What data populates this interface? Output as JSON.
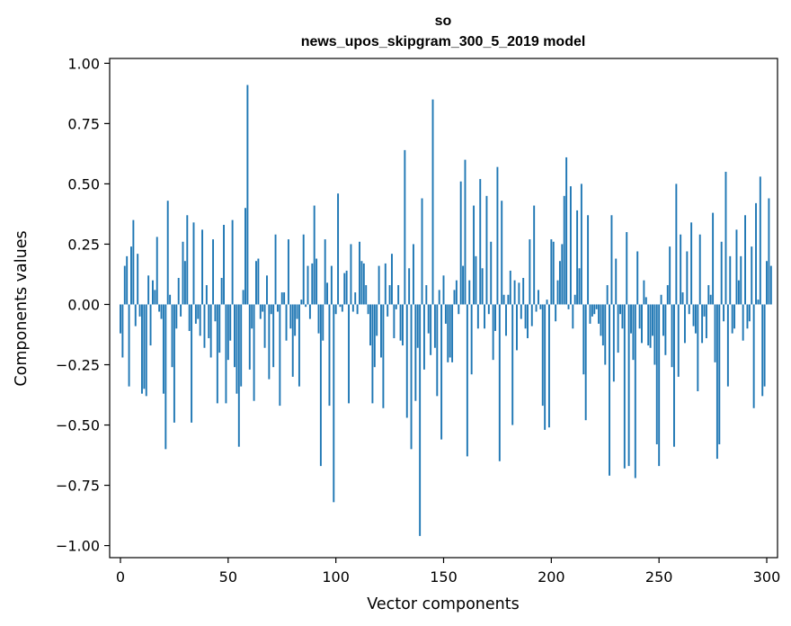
{
  "chart_data": {
    "type": "bar",
    "title": "so",
    "subtitle": "news_upos_skipgram_300_5_2019 model",
    "xlabel": "Vector components",
    "ylabel": "Components values",
    "xlim": [
      -5,
      305
    ],
    "ylim": [
      -1.05,
      1.02
    ],
    "xticks": [
      0,
      50,
      100,
      150,
      200,
      250,
      300
    ],
    "xtick_labels": [
      "0",
      "50",
      "100",
      "150",
      "200",
      "250",
      "300"
    ],
    "yticks": [
      1.0,
      0.75,
      0.5,
      0.25,
      0.0,
      -0.25,
      -0.5,
      -0.75,
      -1.0
    ],
    "ytick_labels": [
      "1.00",
      "0.75",
      "0.50",
      "0.25",
      "0.00",
      "−0.25",
      "−0.50",
      "−0.75",
      "−1.00"
    ],
    "colors": {
      "bar": "#1f77b4",
      "axis": "#000000",
      "background": "#ffffff"
    },
    "values": [
      -0.12,
      -0.22,
      0.16,
      0.2,
      -0.34,
      0.24,
      0.35,
      -0.09,
      0.21,
      -0.05,
      -0.37,
      -0.35,
      -0.38,
      0.12,
      -0.17,
      0.1,
      0.06,
      0.28,
      -0.03,
      -0.06,
      -0.37,
      -0.6,
      0.43,
      0.04,
      -0.26,
      -0.49,
      -0.1,
      0.11,
      -0.05,
      0.26,
      0.18,
      0.37,
      -0.11,
      -0.49,
      0.34,
      -0.08,
      -0.06,
      -0.13,
      0.31,
      -0.18,
      0.08,
      -0.14,
      -0.22,
      0.27,
      -0.07,
      -0.41,
      -0.2,
      0.11,
      0.33,
      -0.41,
      -0.23,
      -0.15,
      0.35,
      -0.26,
      -0.37,
      -0.59,
      -0.34,
      0.06,
      0.4,
      0.91,
      -0.27,
      -0.1,
      -0.4,
      0.18,
      0.19,
      -0.06,
      -0.03,
      -0.18,
      0.12,
      -0.31,
      -0.04,
      -0.26,
      0.29,
      -0.03,
      -0.42,
      0.05,
      0.05,
      -0.15,
      0.27,
      -0.1,
      -0.3,
      -0.13,
      -0.06,
      -0.34,
      0.02,
      0.29,
      -0.01,
      0.16,
      -0.06,
      0.17,
      0.41,
      0.19,
      -0.12,
      -0.67,
      -0.15,
      0.27,
      0.09,
      -0.42,
      0.16,
      -0.82,
      -0.04,
      0.46,
      -0.01,
      -0.03,
      0.13,
      0.14,
      -0.41,
      0.25,
      -0.03,
      0.05,
      -0.04,
      0.26,
      0.18,
      0.17,
      0.08,
      -0.04,
      -0.17,
      -0.41,
      -0.26,
      -0.13,
      0.16,
      -0.22,
      -0.43,
      0.17,
      -0.05,
      0.08,
      0.21,
      -0.14,
      -0.02,
      0.08,
      -0.15,
      -0.17,
      0.64,
      -0.47,
      0.15,
      -0.6,
      0.25,
      -0.4,
      -0.18,
      -0.96,
      0.44,
      -0.27,
      0.08,
      -0.12,
      -0.21,
      0.85,
      -0.18,
      -0.38,
      0.06,
      -0.56,
      0.12,
      -0.08,
      -0.24,
      -0.22,
      -0.24,
      0.06,
      0.1,
      -0.04,
      0.51,
      0.16,
      0.6,
      -0.63,
      0.1,
      -0.29,
      0.41,
      0.2,
      -0.1,
      0.52,
      0.15,
      -0.1,
      0.45,
      -0.04,
      0.26,
      -0.23,
      -0.11,
      0.57,
      -0.65,
      0.43,
      0.04,
      -0.13,
      0.04,
      0.14,
      -0.5,
      0.1,
      -0.19,
      0.09,
      -0.06,
      0.11,
      -0.1,
      -0.14,
      0.27,
      -0.09,
      0.41,
      -0.03,
      0.06,
      -0.02,
      -0.42,
      -0.52,
      0.02,
      -0.51,
      0.27,
      0.26,
      -0.07,
      0.1,
      0.18,
      0.25,
      0.45,
      0.61,
      -0.02,
      0.49,
      -0.1,
      0.04,
      0.39,
      0.15,
      0.5,
      -0.29,
      -0.48,
      0.37,
      -0.08,
      -0.05,
      -0.04,
      -0.02,
      -0.08,
      -0.13,
      -0.17,
      -0.25,
      0.08,
      -0.71,
      0.37,
      -0.32,
      0.19,
      -0.2,
      -0.04,
      -0.1,
      -0.68,
      0.3,
      -0.67,
      -0.12,
      -0.23,
      -0.72,
      0.22,
      -0.1,
      -0.16,
      0.1,
      0.03,
      -0.17,
      -0.18,
      -0.13,
      -0.25,
      -0.58,
      -0.67,
      0.04,
      -0.13,
      -0.21,
      0.08,
      0.24,
      -0.26,
      -0.59,
      0.5,
      -0.3,
      0.29,
      0.05,
      -0.16,
      0.22,
      -0.04,
      0.34,
      -0.09,
      -0.12,
      -0.36,
      0.29,
      -0.16,
      -0.05,
      -0.14,
      0.08,
      0.04,
      0.38,
      -0.24,
      -0.64,
      -0.58,
      0.26,
      -0.07,
      0.55,
      -0.34,
      0.2,
      -0.12,
      -0.1,
      0.31,
      0.1,
      0.2,
      -0.15,
      0.37,
      -0.1,
      -0.07,
      0.24,
      -0.43,
      0.42,
      0.02,
      0.53,
      -0.38,
      -0.34,
      0.18,
      0.44,
      0.16
    ]
  }
}
